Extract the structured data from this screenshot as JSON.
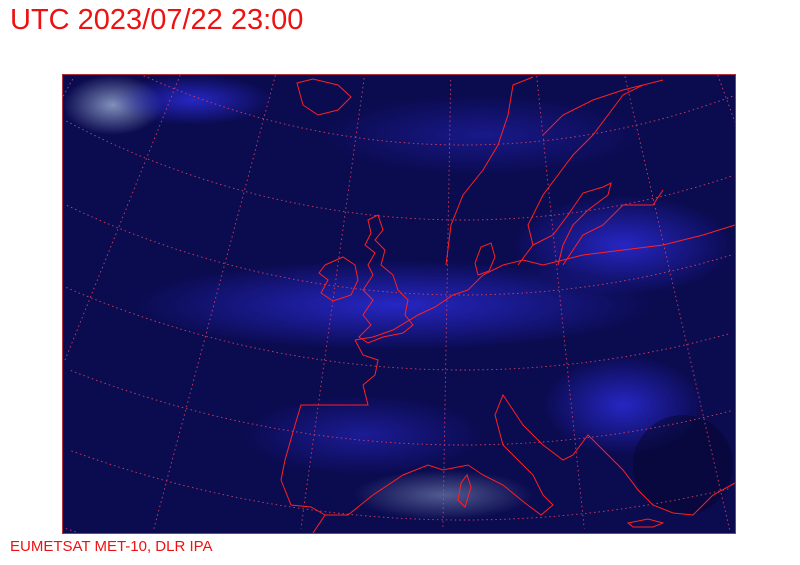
{
  "header": {
    "title": "UTC 2023/07/22 23:00"
  },
  "footer": {
    "credit": "EUMETSAT MET-10, DLR IPA"
  },
  "map": {
    "type": "satellite-image",
    "region": "Europe",
    "colors": {
      "background": "#0a0a4a",
      "cloud": "#2a2ad0",
      "coastline": "#ff2020",
      "graticule": "#d04060",
      "title_text": "#ee1111"
    }
  }
}
